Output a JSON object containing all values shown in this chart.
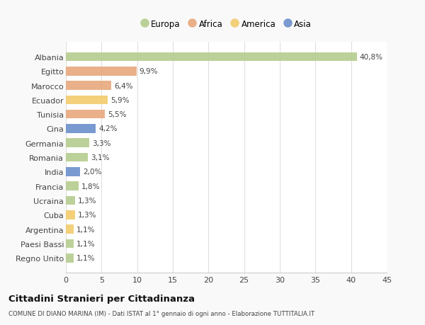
{
  "countries": [
    "Albania",
    "Egitto",
    "Marocco",
    "Ecuador",
    "Tunisia",
    "Cina",
    "Germania",
    "Romania",
    "India",
    "Francia",
    "Ucraina",
    "Cuba",
    "Argentina",
    "Paesi Bassi",
    "Regno Unito"
  ],
  "values": [
    40.8,
    9.9,
    6.4,
    5.9,
    5.5,
    4.2,
    3.3,
    3.1,
    2.0,
    1.8,
    1.3,
    1.3,
    1.1,
    1.1,
    1.1
  ],
  "labels": [
    "40,8%",
    "9,9%",
    "6,4%",
    "5,9%",
    "5,5%",
    "4,2%",
    "3,3%",
    "3,1%",
    "2,0%",
    "1,8%",
    "1,3%",
    "1,3%",
    "1,1%",
    "1,1%",
    "1,1%"
  ],
  "continents": [
    "Europa",
    "Africa",
    "Africa",
    "America",
    "Africa",
    "Asia",
    "Europa",
    "Europa",
    "Asia",
    "Europa",
    "Europa",
    "America",
    "America",
    "Europa",
    "Europa"
  ],
  "colors": {
    "Europa": "#b5cc8e",
    "Africa": "#e8a87c",
    "America": "#f2cb6b",
    "Asia": "#6b8fcc"
  },
  "title": "Cittadini Stranieri per Cittadinanza",
  "subtitle": "COMUNE DI DIANO MARINA (IM) - Dati ISTAT al 1° gennaio di ogni anno - Elaborazione TUTTITALIA.IT",
  "xlim": [
    0,
    45
  ],
  "xticks": [
    0,
    5,
    10,
    15,
    20,
    25,
    30,
    35,
    40,
    45
  ],
  "background_color": "#f9f9f9",
  "bar_background": "#ffffff",
  "legend_order": [
    "Europa",
    "Africa",
    "America",
    "Asia"
  ]
}
